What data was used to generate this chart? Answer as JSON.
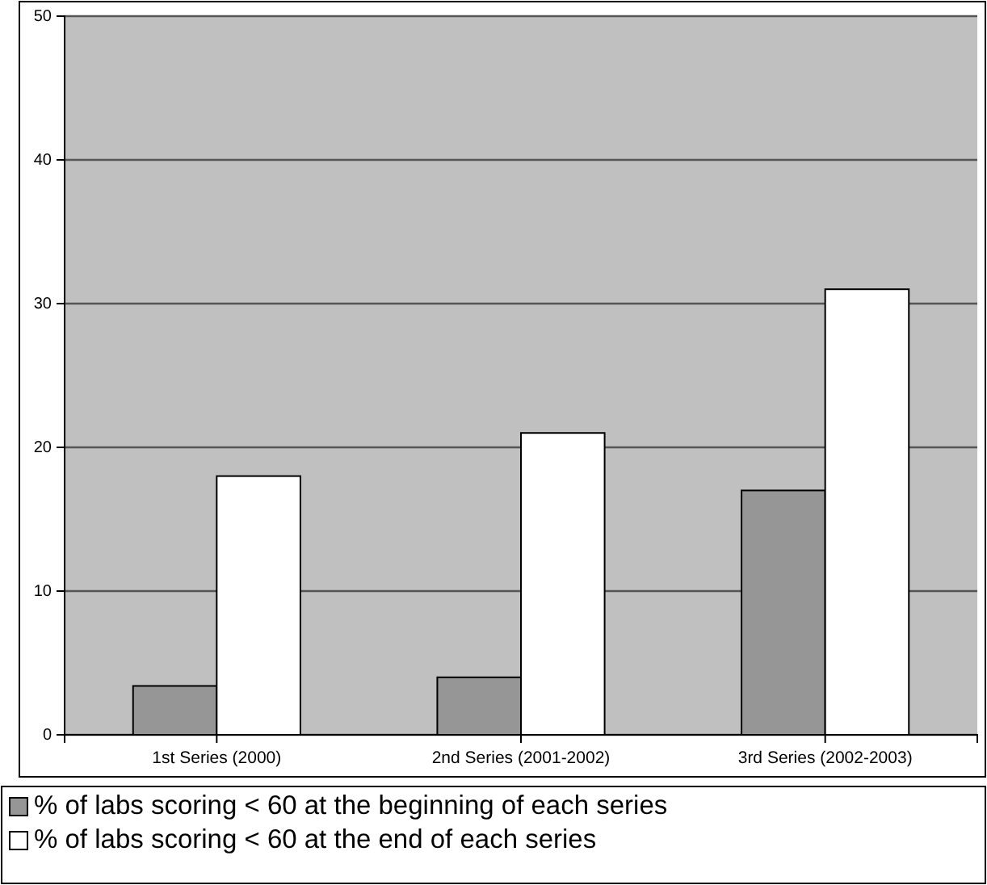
{
  "chart_data": {
    "type": "bar",
    "categories": [
      "1st Series (2000)",
      "2nd Series (2001-2002)",
      "3rd Series (2002-2003)"
    ],
    "series": [
      {
        "name": "% of labs scoring < 60 at the beginning of each series",
        "color": "#969696",
        "values": [
          3.4,
          4,
          17
        ]
      },
      {
        "name": "% of labs scoring < 60 at the end of each series",
        "color": "#ffffff",
        "values": [
          18,
          21,
          31
        ]
      }
    ],
    "ylim": [
      0,
      50
    ],
    "yticks": [
      0,
      10,
      20,
      30,
      40,
      50
    ],
    "grid": "y",
    "legend": "bottom"
  }
}
